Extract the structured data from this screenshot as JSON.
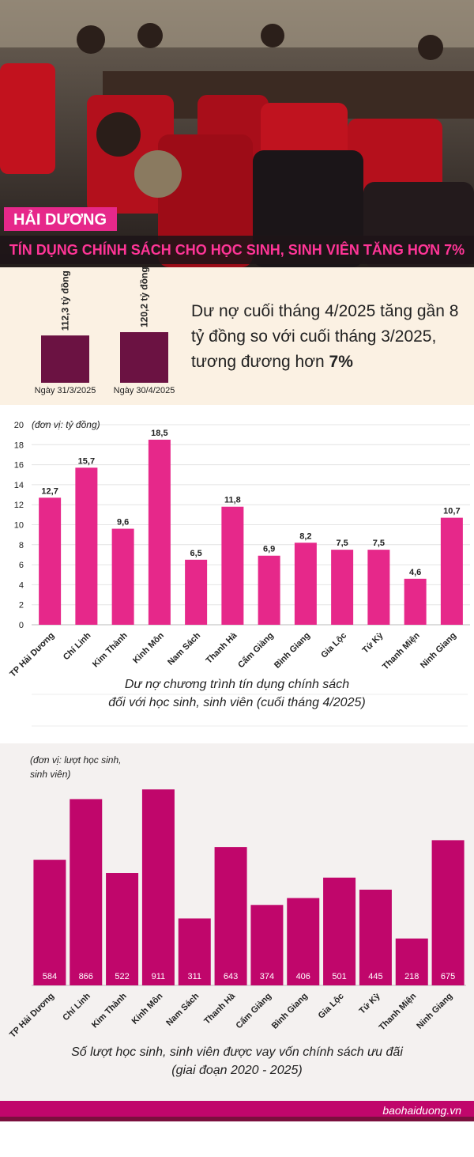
{
  "header": {
    "region": "HẢI DƯƠNG",
    "title": "TÍN DỤNG CHÍNH SÁCH CHO HỌC SINH, SINH VIÊN TĂNG HƠN 7%"
  },
  "summary": {
    "text": "Dư nợ cuối tháng 4/2025 tăng gần 8 tỷ đồng so với cuối tháng 3/2025, tương đương hơn ",
    "highlight": "7%"
  },
  "chart_data": [
    {
      "type": "bar",
      "categories": [
        "Ngày 31/3/2025",
        "Ngày 30/4/2025"
      ],
      "values": [
        112.3,
        120.2
      ],
      "value_labels": [
        "112,3 tỷ đồng",
        "120,2 tỷ đồng"
      ],
      "color": "#6b1242"
    },
    {
      "type": "bar",
      "unit": "(đơn vị: tỷ đồng)",
      "title": [
        "Dư nợ chương trình tín dụng chính sách",
        "đối với học sinh, sinh viên (cuối tháng 4/2025)"
      ],
      "categories": [
        "TP Hải Dương",
        "Chí Linh",
        "Kim Thành",
        "Kinh Môn",
        "Nam Sách",
        "Thanh Hà",
        "Cẩm Giàng",
        "Bình Giang",
        "Gia Lộc",
        "Tứ Kỳ",
        "Thanh Miện",
        "Ninh Giang"
      ],
      "values": [
        12.7,
        15.7,
        9.6,
        18.5,
        6.5,
        11.8,
        6.9,
        8.2,
        7.5,
        7.5,
        4.6,
        10.7
      ],
      "value_labels": [
        "12,7",
        "15,7",
        "9,6",
        "18,5",
        "6,5",
        "11,8",
        "6,9",
        "8,2",
        "7,5",
        "7,5",
        "4,6",
        "10,7"
      ],
      "color": "#e6288a",
      "ylim": [
        0,
        20
      ],
      "yticks": [
        0,
        2,
        4,
        6,
        8,
        10,
        12,
        14,
        16,
        18,
        20
      ],
      "grid": true
    },
    {
      "type": "bar",
      "unit": [
        "(đơn vị: lượt học sinh,",
        "sinh viên)"
      ],
      "title": [
        "Số lượt học sinh, sinh viên được vay vốn chính sách ưu đãi",
        "(giai đoạn 2020 - 2025)"
      ],
      "categories": [
        "TP Hải Dương",
        "Chí Linh",
        "Kim Thành",
        "Kinh Môn",
        "Nam Sách",
        "Thanh Hà",
        "Cẩm Giàng",
        "Bình Giang",
        "Gia Lộc",
        "Tứ Kỳ",
        "Thanh Miện",
        "Ninh Giang"
      ],
      "values": [
        584,
        866,
        522,
        911,
        311,
        643,
        374,
        406,
        501,
        445,
        218,
        675
      ],
      "color": "#c0066b",
      "ylim": [
        0,
        1000
      ]
    }
  ],
  "footer": {
    "source": "baohaiduong.vn"
  }
}
